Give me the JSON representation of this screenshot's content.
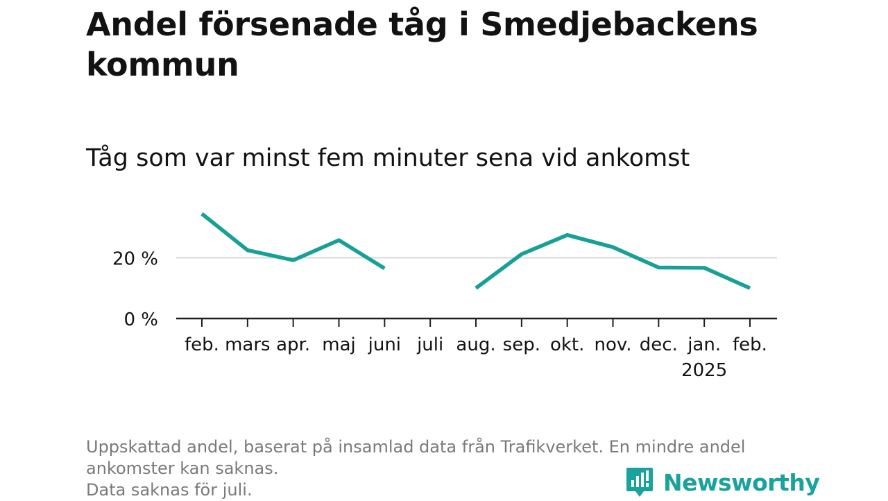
{
  "title": "Andel försenade tåg i Smedjebackens kommun",
  "subtitle": "Tåg som var minst fem minuter sena vid ankomst",
  "footnote": {
    "line1": "Uppskattad andel, baserat på insamlad data från Trafikverket. En mindre andel",
    "line2": "ankomster kan saknas.",
    "line3": "Data saknas för juli."
  },
  "logo": {
    "text": "Newsworthy",
    "icon": "bar-chart-speech-bubble-icon"
  },
  "colors": {
    "line": "#16a096",
    "axis": "#1f1f1f",
    "grid": "#d9d9d9",
    "text": "#121212",
    "muted": "#7a7a7a",
    "brand": "#1aa39c"
  },
  "chart_data": {
    "type": "line",
    "title": "Andel försenade tåg i Smedjebackens kommun",
    "subtitle": "Tåg som var minst fem minuter sena vid ankomst",
    "xlabel": "",
    "ylabel": "",
    "categories": [
      "feb.",
      "mars",
      "apr.",
      "maj",
      "juni",
      "juli",
      "aug.",
      "sep.",
      "okt.",
      "nov.",
      "dec.",
      "jan.",
      "feb."
    ],
    "x_sublabels": [
      "",
      "",
      "",
      "",
      "",
      "",
      "",
      "",
      "",
      "",
      "",
      "2025",
      ""
    ],
    "series": [
      {
        "values": [
          34.5,
          22.5,
          19.2,
          25.8,
          16.5,
          null,
          10.0,
          21.2,
          27.5,
          23.5,
          16.8,
          16.7,
          10.0
        ]
      }
    ],
    "yticks": [
      0,
      20
    ],
    "ytick_labels": [
      "0 %",
      "20 %"
    ],
    "ylim": [
      0,
      40
    ],
    "grid": true,
    "legend": "none"
  }
}
